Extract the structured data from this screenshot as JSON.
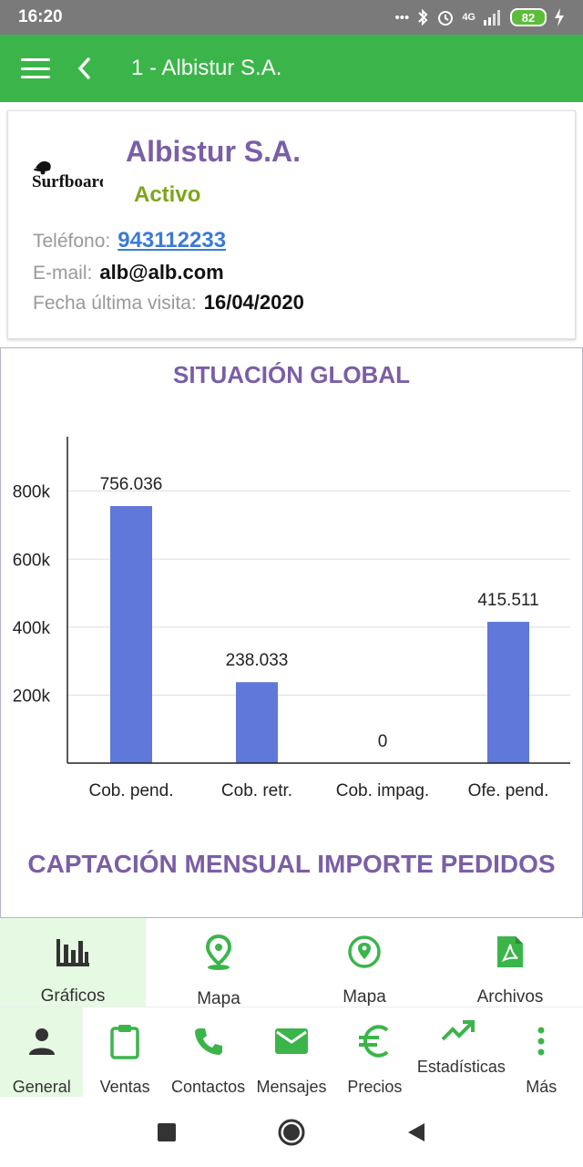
{
  "status_bar": {
    "time": "16:20",
    "network": "4G",
    "battery": "82"
  },
  "app_bar": {
    "title": "1 - Albistur S.A."
  },
  "client": {
    "logo_text": "Surfboards",
    "name": "Albistur S.A.",
    "status": "Activo",
    "phone_label": "Teléfono:",
    "phone": "943112233",
    "email_label": "E-mail:",
    "email": "alb@alb.com",
    "last_visit_label": "Fecha última visita:",
    "last_visit": "16/04/2020"
  },
  "chart_data": {
    "type": "bar",
    "title": "SITUACIÓN GLOBAL",
    "categories": [
      "Cob. pend.",
      "Cob. retr.",
      "Cob. impag.",
      "Ofe. pend."
    ],
    "values": [
      756036,
      238033,
      0,
      415511
    ],
    "value_labels": [
      "756.036",
      "238.033",
      "0",
      "415.511"
    ],
    "ylim": [
      0,
      960000
    ],
    "y_ticks": [
      200000,
      400000,
      600000,
      800000
    ],
    "y_tick_labels": [
      "200k",
      "400k",
      "600k",
      "800k"
    ],
    "grid": true,
    "color": "#5f78d9"
  },
  "next_section_title": "CAPTACIÓN MENSUAL IMPORTE PEDIDOS",
  "tabs": [
    {
      "label": "Gráficos",
      "icon": "bar-chart-icon",
      "active": true
    },
    {
      "label": "Mapa",
      "icon": "map-pin-icon",
      "active": false
    },
    {
      "label": "Mapa",
      "icon": "location-circle-icon",
      "active": false
    },
    {
      "label": "Archivos",
      "icon": "pdf-file-icon",
      "active": false
    }
  ],
  "bottom_nav": [
    {
      "label": "General",
      "icon": "person-icon",
      "active": true
    },
    {
      "label": "Ventas",
      "icon": "clipboard-icon"
    },
    {
      "label": "Contactos",
      "icon": "phone-icon"
    },
    {
      "label": "Mensajes",
      "icon": "mail-icon"
    },
    {
      "label": "Precios",
      "icon": "euro-icon"
    },
    {
      "label": "Estadísticas",
      "icon": "trending-up-icon"
    },
    {
      "label": "Más",
      "icon": "more-vertical-icon"
    }
  ],
  "colors": {
    "green": "#3bb54a",
    "purple": "#7b5ea7",
    "bar": "#5f78d9",
    "status_active": "#7da51a",
    "link": "#3a7bd5"
  }
}
